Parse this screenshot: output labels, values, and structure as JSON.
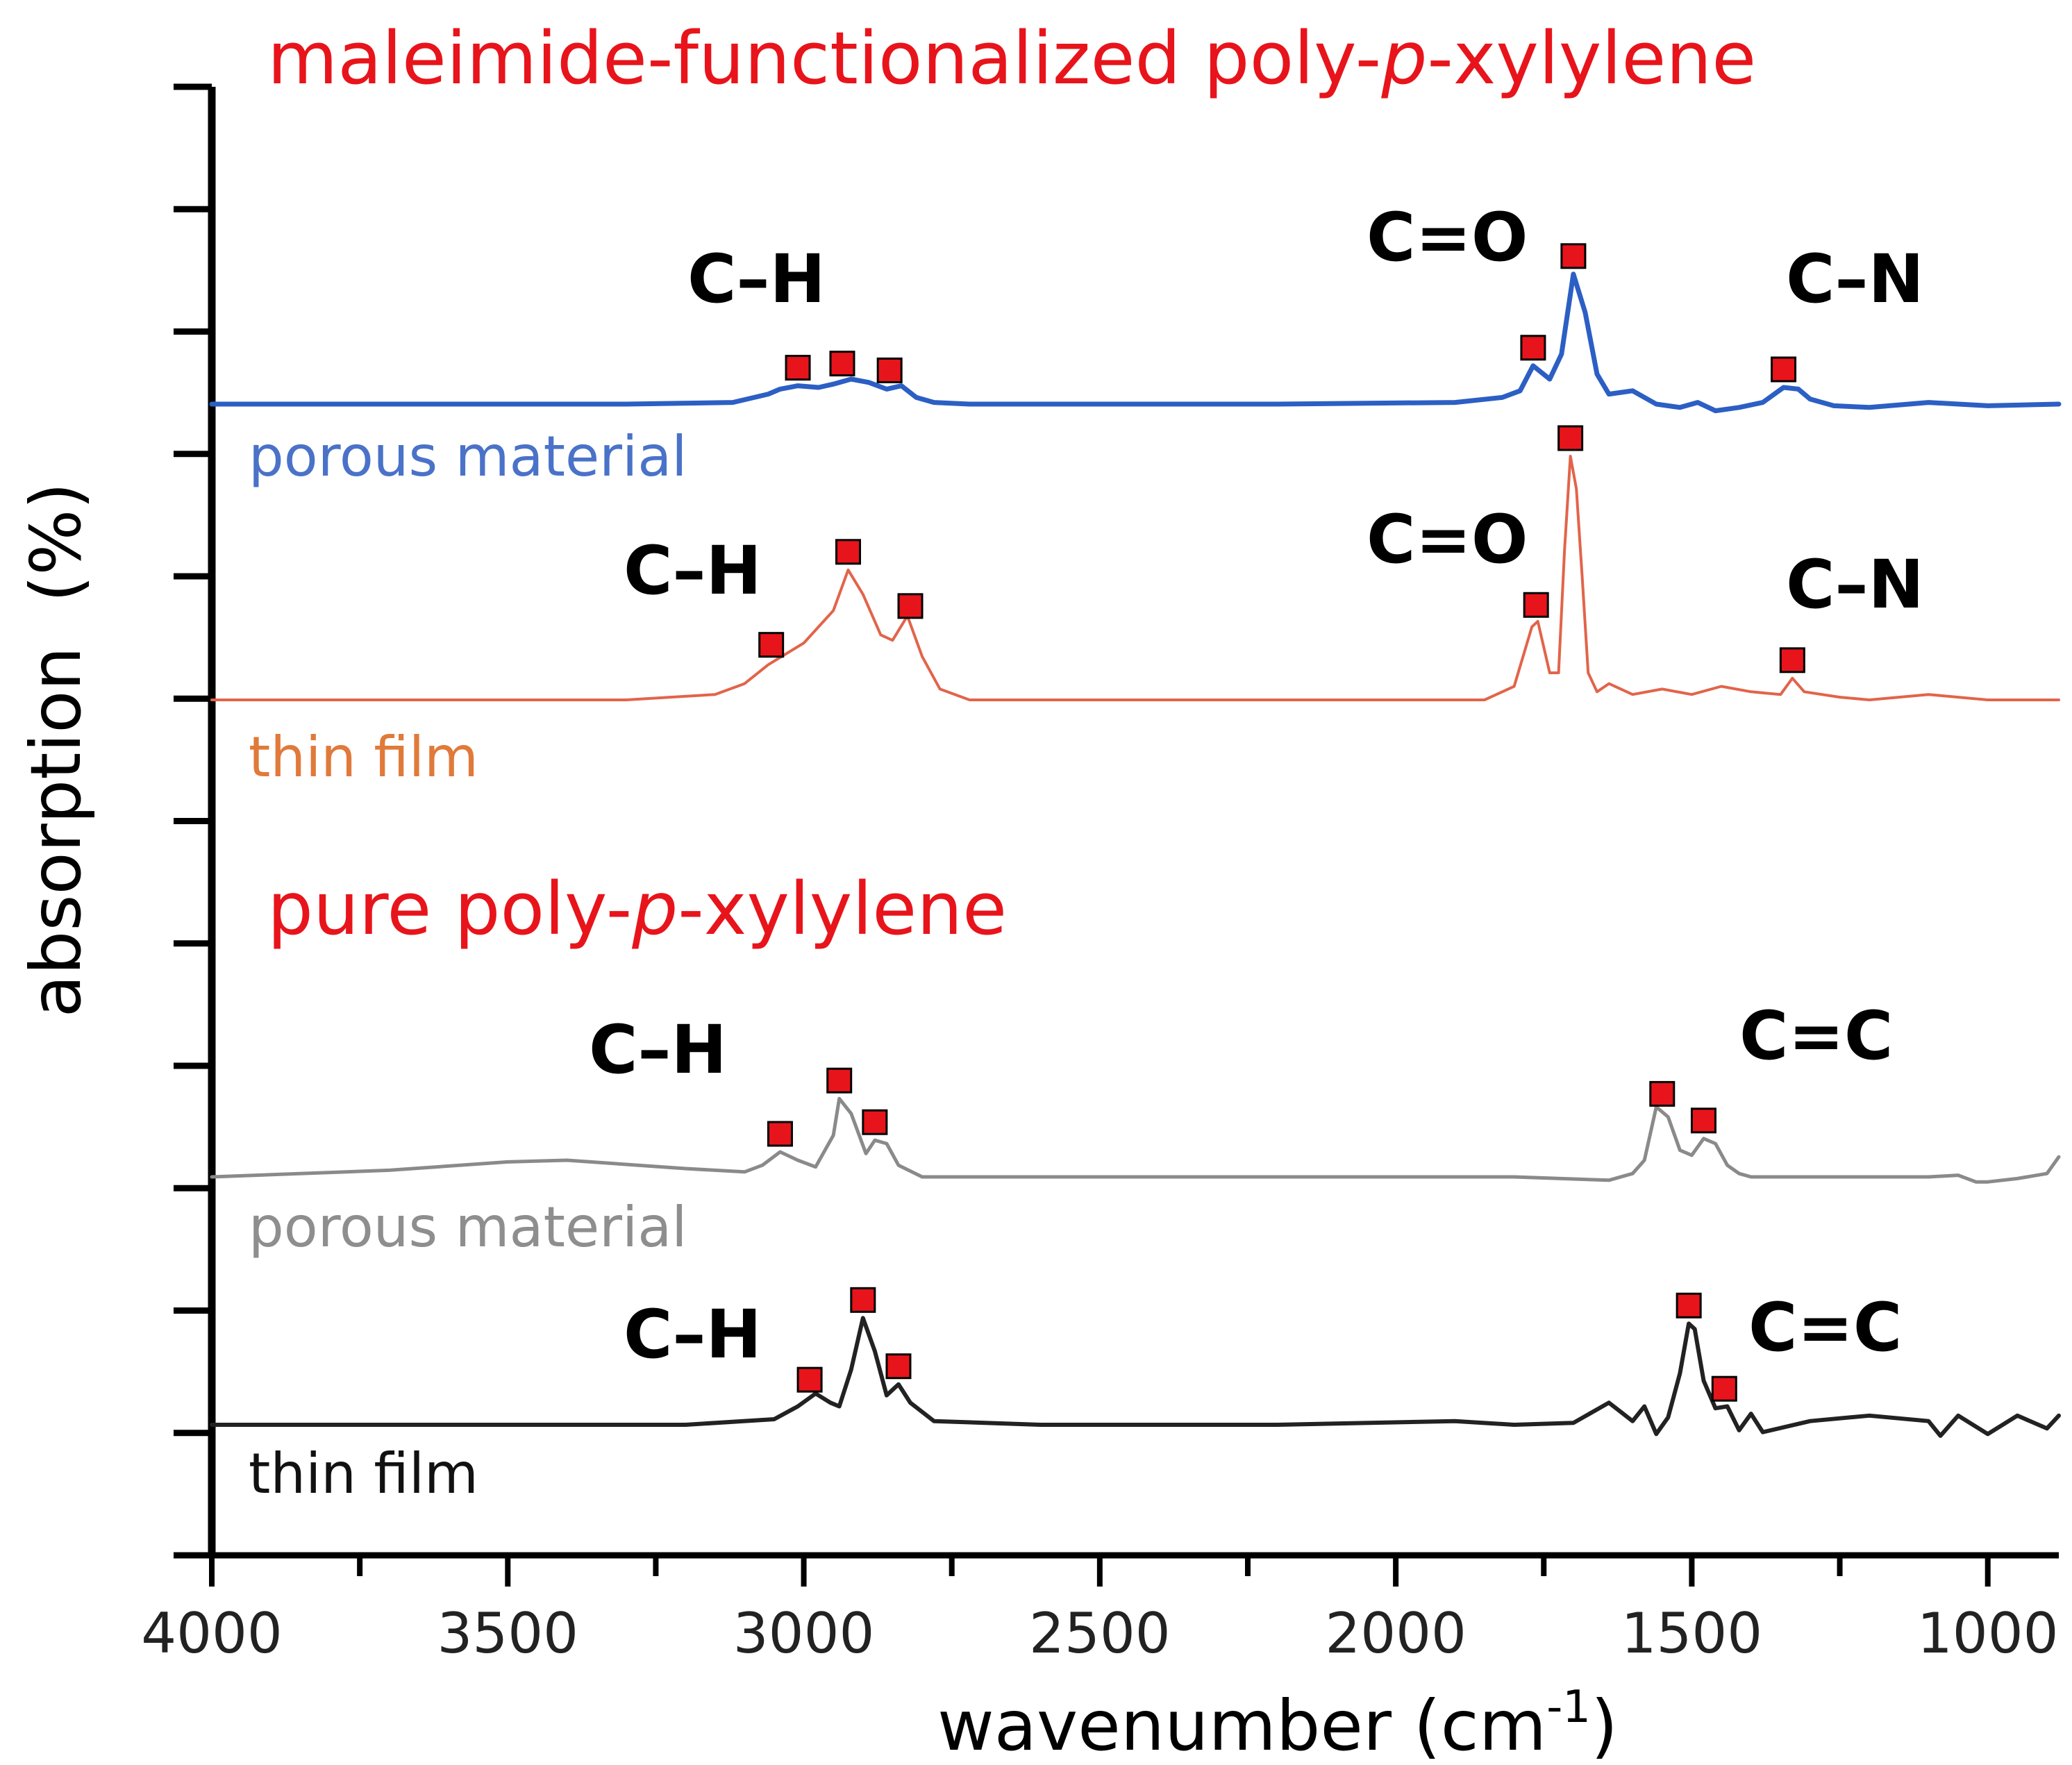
{
  "chart_data": {
    "type": "line",
    "title": "",
    "xlabel": "wavenumber (cm",
    "xlabel_sup": "-1",
    "xlabel_end": ")",
    "ylabel": "absorption  (%)",
    "xlim": [
      4000,
      880
    ],
    "x_ticks": [
      4000,
      3500,
      3000,
      2500,
      2000,
      1500,
      1000
    ],
    "x_tick_labels": [
      "4000",
      "3500",
      "3000",
      "2500",
      "2000",
      "1500",
      "1000"
    ],
    "y_ticks_count": 12,
    "grid": false,
    "panels": [
      {
        "title_prefix": "maleimide-functionalized poly-",
        "title_italic": "p",
        "title_suffix": "-xylylene",
        "color": "#e8141b"
      },
      {
        "title_prefix": "pure poly-",
        "title_italic": "p",
        "title_suffix": "-xylylene",
        "color": "#e8141b"
      }
    ],
    "series": [
      {
        "name": "porous material",
        "group": "maleimide-functionalized poly-p-xylylene",
        "color": "#2c5fc4",
        "label_color": "#4a72c8",
        "baseline": 0.0,
        "x": [
          4000,
          3300,
          3120,
          3060,
          3040,
          3010,
          2975,
          2950,
          2920,
          2890,
          2860,
          2835,
          2810,
          2780,
          2720,
          2600,
          2200,
          1900,
          1820,
          1790,
          1768,
          1740,
          1720,
          1700,
          1680,
          1660,
          1640,
          1600,
          1560,
          1520,
          1490,
          1460,
          1420,
          1380,
          1345,
          1320,
          1300,
          1260,
          1200,
          1100,
          1000,
          880
        ],
        "y": [
          0.0,
          0.0,
          0.01,
          0.06,
          0.09,
          0.11,
          0.1,
          0.12,
          0.15,
          0.13,
          0.09,
          0.11,
          0.04,
          0.01,
          0.0,
          0.0,
          0.0,
          0.01,
          0.04,
          0.08,
          0.23,
          0.15,
          0.3,
          0.78,
          0.55,
          0.18,
          0.06,
          0.08,
          0.0,
          -0.02,
          0.01,
          -0.04,
          -0.02,
          0.01,
          0.1,
          0.09,
          0.03,
          -0.01,
          -0.02,
          0.01,
          -0.01,
          0.0
        ]
      },
      {
        "name": "thin film",
        "group": "maleimide-functionalized poly-p-xylylene",
        "color": "#e2644a",
        "label_color": "#e07a3a",
        "baseline": 0.0,
        "x": [
          4000,
          3300,
          3150,
          3100,
          3060,
          3000,
          2950,
          2925,
          2900,
          2870,
          2850,
          2825,
          2800,
          2770,
          2720,
          2600,
          2200,
          1850,
          1800,
          1770,
          1760,
          1740,
          1725,
          1715,
          1705,
          1695,
          1685,
          1675,
          1660,
          1640,
          1600,
          1550,
          1500,
          1450,
          1400,
          1350,
          1330,
          1310,
          1250,
          1200,
          1100,
          1000,
          880
        ],
        "y": [
          0.0,
          0.0,
          0.02,
          0.06,
          0.13,
          0.21,
          0.33,
          0.48,
          0.39,
          0.24,
          0.22,
          0.31,
          0.16,
          0.04,
          0.0,
          0.0,
          0.0,
          0.0,
          0.05,
          0.27,
          0.29,
          0.1,
          0.1,
          0.55,
          0.9,
          0.78,
          0.45,
          0.1,
          0.03,
          0.06,
          0.02,
          0.04,
          0.02,
          0.05,
          0.03,
          0.02,
          0.08,
          0.03,
          0.01,
          0.0,
          0.02,
          0.0,
          0.0
        ]
      },
      {
        "name": "porous material",
        "group": "pure poly-p-xylylene",
        "color": "#8a8a8a",
        "label_color": "#8e8e8e",
        "baseline": 0.0,
        "x": [
          4000,
          3700,
          3500,
          3400,
          3200,
          3100,
          3070,
          3040,
          3010,
          2980,
          2950,
          2940,
          2920,
          2895,
          2880,
          2860,
          2840,
          2800,
          2600,
          2200,
          1800,
          1640,
          1600,
          1580,
          1560,
          1540,
          1520,
          1500,
          1480,
          1460,
          1440,
          1420,
          1400,
          1200,
          1100,
          1050,
          1020,
          1000,
          950,
          900,
          880
        ],
        "y": [
          0.0,
          0.04,
          0.09,
          0.1,
          0.05,
          0.03,
          0.07,
          0.15,
          0.1,
          0.06,
          0.25,
          0.47,
          0.38,
          0.14,
          0.22,
          0.2,
          0.07,
          0.0,
          0.0,
          0.0,
          0.0,
          -0.02,
          0.02,
          0.1,
          0.42,
          0.36,
          0.16,
          0.13,
          0.23,
          0.2,
          0.07,
          0.02,
          0.0,
          0.0,
          0.0,
          0.01,
          -0.03,
          -0.03,
          -0.01,
          0.02,
          0.12
        ]
      },
      {
        "name": "thin film",
        "group": "pure poly-p-xylylene",
        "color": "#222222",
        "label_color": "#111111",
        "baseline": 0.0,
        "x": [
          4000,
          3600,
          3200,
          3050,
          3010,
          2980,
          2955,
          2940,
          2920,
          2900,
          2880,
          2860,
          2840,
          2820,
          2780,
          2600,
          2200,
          1900,
          1800,
          1700,
          1640,
          1600,
          1580,
          1560,
          1540,
          1520,
          1505,
          1495,
          1480,
          1460,
          1440,
          1420,
          1400,
          1380,
          1300,
          1200,
          1100,
          1080,
          1050,
          1000,
          950,
          900,
          880
        ],
        "y": [
          0.0,
          0.0,
          0.0,
          0.03,
          0.1,
          0.17,
          0.12,
          0.1,
          0.3,
          0.58,
          0.4,
          0.16,
          0.22,
          0.12,
          0.02,
          0.0,
          0.0,
          0.02,
          0.0,
          0.01,
          0.12,
          0.02,
          0.1,
          -0.05,
          0.04,
          0.28,
          0.55,
          0.52,
          0.24,
          0.09,
          0.1,
          -0.03,
          0.06,
          -0.04,
          0.02,
          0.05,
          0.02,
          -0.06,
          0.05,
          -0.05,
          0.05,
          -0.02,
          0.05
        ]
      }
    ],
    "annotations": [
      {
        "series": 0,
        "text": "C–H",
        "peaks": [
          3010,
          2935,
          2855
        ]
      },
      {
        "series": 0,
        "text": "C=O",
        "peaks": [
          1768,
          1700
        ]
      },
      {
        "series": 0,
        "text": "C–N",
        "peaks": [
          1345
        ]
      },
      {
        "series": 1,
        "text": "C–H",
        "peaks": [
          3055,
          2925,
          2820
        ]
      },
      {
        "series": 1,
        "text": "C=O",
        "peaks": [
          1763,
          1705
        ]
      },
      {
        "series": 1,
        "text": "C–N",
        "peaks": [
          1330
        ]
      },
      {
        "series": 2,
        "text": "C–H",
        "peaks": [
          3040,
          2940,
          2880
        ]
      },
      {
        "series": 2,
        "text": "C=C",
        "peaks": [
          1550,
          1480
        ]
      },
      {
        "series": 3,
        "text": "C–H",
        "peaks": [
          2990,
          2900,
          2840
        ]
      },
      {
        "series": 3,
        "text": "C=C",
        "peaks": [
          1505,
          1445
        ]
      }
    ]
  }
}
